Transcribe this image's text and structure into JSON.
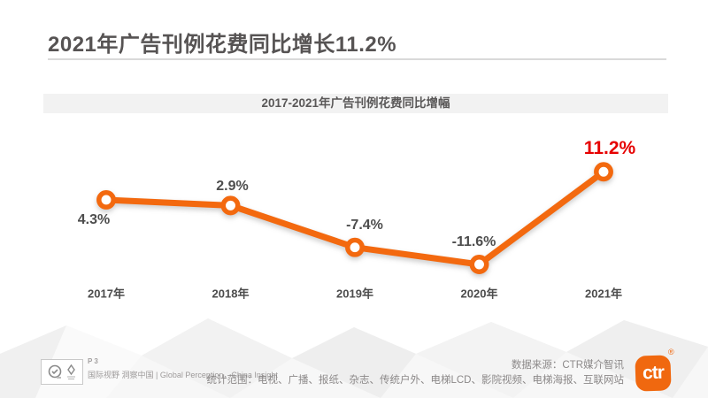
{
  "header": {
    "title": "2021年广告刊例花费同比增长11.2%"
  },
  "chart": {
    "banner_title": "2017-2021年广告刊例花费同比增幅"
  },
  "chart_data": {
    "type": "line",
    "title": "2017-2021年广告刊例花费同比增幅",
    "categories": [
      "2017年",
      "2018年",
      "2019年",
      "2020年",
      "2021年"
    ],
    "values": [
      4.3,
      2.9,
      -7.4,
      -11.6,
      11.2
    ],
    "labels": [
      "4.3%",
      "2.9%",
      "-7.4%",
      "-11.6%",
      "11.2%"
    ],
    "unit": "%",
    "xlabel": "",
    "ylabel": "同比增幅",
    "ylim": [
      -15,
      15
    ],
    "grid": false,
    "legend": false,
    "highlight_index": 4,
    "line_color": "#F3690F",
    "marker_fill": "#FFFFFF",
    "label_color": "#4D4D4D",
    "highlight_label_color": "#E60000"
  },
  "footer": {
    "page_number": "P 3",
    "tagline": "国际视野 洞察中国 | Global Perception，China Insight",
    "source_line": "数据来源：CTR媒介智讯",
    "scope_line": "统计范围：电视、广播、报纸、杂志、传统户外、电梯LCD、影院视频、电梯海报、互联网站",
    "logo_text": "ctr",
    "registered_symbol": "®",
    "logo_color": "#F0680F"
  }
}
